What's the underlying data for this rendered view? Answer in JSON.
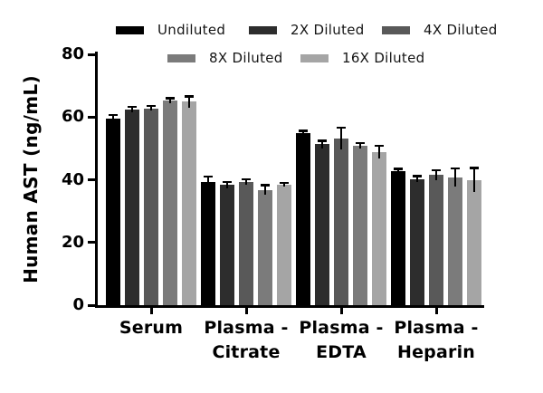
{
  "chart_data": {
    "type": "bar",
    "title": "",
    "xlabel": "",
    "ylabel": "Human AST (ng/mL)",
    "ylim": [
      0,
      80
    ],
    "yticks": [
      0,
      20,
      40,
      60,
      80
    ],
    "grid": false,
    "legend_position": "top",
    "error_bars": "sd, upper caps shown, black",
    "categories": [
      "Serum",
      "Plasma - Citrate",
      "Plasma - EDTA",
      "Plasma - Heparin"
    ],
    "category_lines": [
      [
        "Serum"
      ],
      [
        "Plasma -",
        "Citrate"
      ],
      [
        "Plasma -",
        "EDTA"
      ],
      [
        "Plasma -",
        "Heparin"
      ]
    ],
    "series": [
      {
        "name": "Undiluted",
        "color": "#000000",
        "values": [
          59.4,
          39.3,
          54.9,
          42.7
        ],
        "errors": [
          1.3,
          1.8,
          0.7,
          0.8
        ]
      },
      {
        "name": "2X Diluted",
        "color": "#2d2d2d",
        "values": [
          62.4,
          38.3,
          51.3,
          40.2
        ],
        "errors": [
          0.9,
          1.0,
          1.2,
          1.0
        ]
      },
      {
        "name": "4X Diluted",
        "color": "#595959",
        "values": [
          62.8,
          39.3,
          53.2,
          41.5
        ],
        "errors": [
          0.8,
          0.9,
          3.5,
          1.6
        ]
      },
      {
        "name": "8X Diluted",
        "color": "#7b7b7b",
        "values": [
          65.2,
          36.7,
          50.9,
          40.7
        ],
        "errors": [
          0.9,
          1.6,
          0.8,
          3.0
        ]
      },
      {
        "name": "16X Diluted",
        "color": "#a5a5a5",
        "values": [
          64.9,
          38.4,
          48.9,
          40.0
        ],
        "errors": [
          1.8,
          0.6,
          2.0,
          3.8
        ]
      }
    ],
    "axis_color": "#000000",
    "background_color": "#ffffff"
  }
}
